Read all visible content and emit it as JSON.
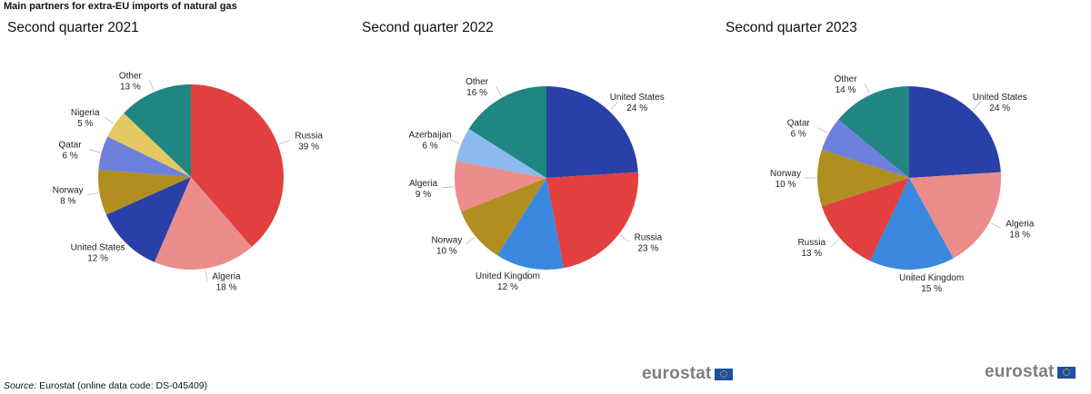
{
  "title": "Main partners for extra-EU imports of natural gas",
  "source_label": "Source:",
  "source_text": "Eurostat (online data code: DS-045409)",
  "logo_text": "eurostat",
  "colors": {
    "Russia": "#e23f3f",
    "Algeria": "#ec8d8b",
    "United States": "#2840a8",
    "Norway": "#b08e1f",
    "Qatar": "#6d81dc",
    "Nigeria": "#e3c863",
    "Other": "#1f8683",
    "United Kingdom": "#3a88e0",
    "Azerbaijan": "#8cb9ee"
  },
  "chart_data": [
    {
      "type": "pie",
      "title": "Second quarter 2021",
      "slices": [
        {
          "name": "Russia",
          "value": 39
        },
        {
          "name": "Algeria",
          "value": 18
        },
        {
          "name": "United States",
          "value": 12
        },
        {
          "name": "Norway",
          "value": 8
        },
        {
          "name": "Qatar",
          "value": 6
        },
        {
          "name": "Nigeria",
          "value": 5
        },
        {
          "name": "Other",
          "value": 13
        }
      ]
    },
    {
      "type": "pie",
      "title": "Second quarter 2022",
      "slices": [
        {
          "name": "United States",
          "value": 24
        },
        {
          "name": "Russia",
          "value": 23
        },
        {
          "name": "United Kingdom",
          "value": 12
        },
        {
          "name": "Norway",
          "value": 10
        },
        {
          "name": "Algeria",
          "value": 9
        },
        {
          "name": "Azerbaijan",
          "value": 6
        },
        {
          "name": "Other",
          "value": 16
        }
      ]
    },
    {
      "type": "pie",
      "title": "Second quarter 2023",
      "slices": [
        {
          "name": "United States",
          "value": 24
        },
        {
          "name": "Algeria",
          "value": 18
        },
        {
          "name": "United Kingdom",
          "value": 15
        },
        {
          "name": "Russia",
          "value": 13
        },
        {
          "name": "Norway",
          "value": 10
        },
        {
          "name": "Qatar",
          "value": 6
        },
        {
          "name": "Other",
          "value": 14
        }
      ]
    }
  ]
}
